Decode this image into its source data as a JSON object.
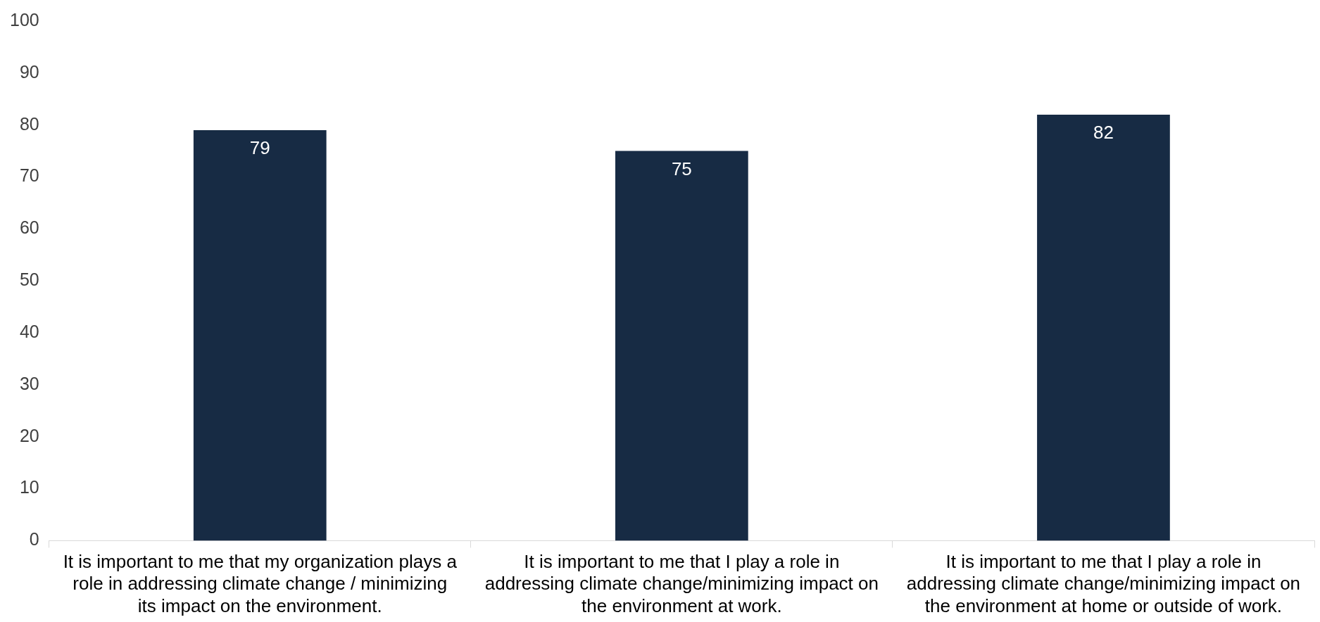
{
  "chart_data": {
    "type": "bar",
    "categories": [
      "It is important to me that my organization plays a role in addressing climate change / minimizing its impact on the environment.",
      "It is important to me that I play a role in addressing climate change/minimizing impact on the environment at work.",
      "It is important to me that I play a role in addressing climate change/minimizing impact on the environment at home or outside of work."
    ],
    "values": [
      79,
      75,
      82
    ],
    "color": "#172b44",
    "ylim": [
      0,
      100
    ],
    "yticks": [
      0,
      10,
      20,
      30,
      40,
      50,
      60,
      70,
      80,
      90,
      100
    ],
    "grid": false,
    "legend": false,
    "data_labels": true
  }
}
